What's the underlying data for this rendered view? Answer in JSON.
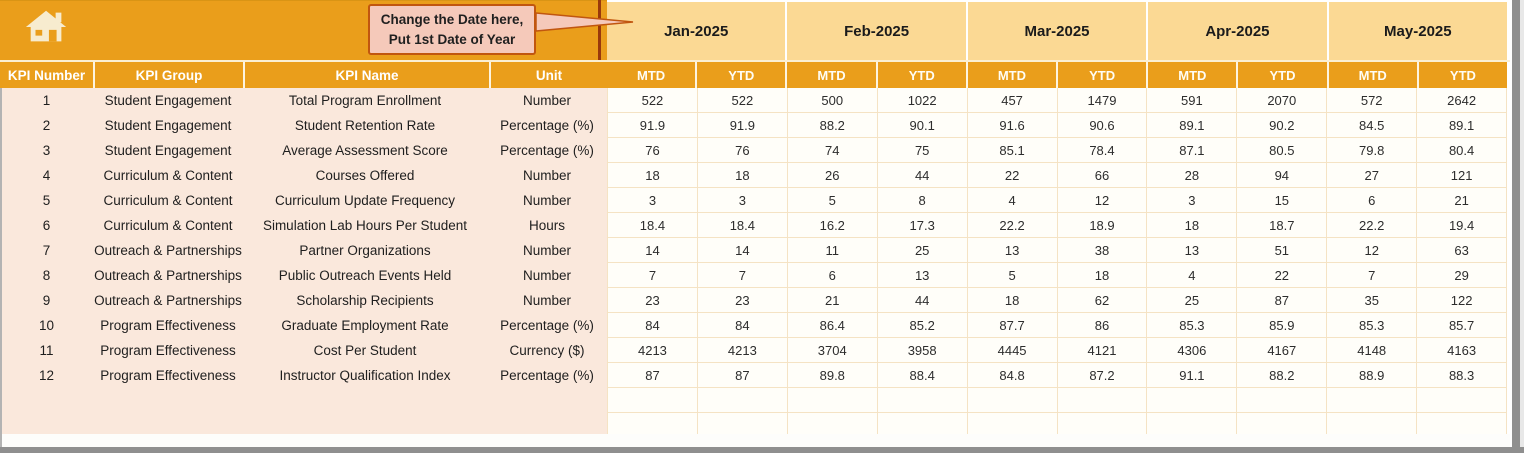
{
  "callout": {
    "line1": "Change the Date here,",
    "line2": "Put 1st Date of Year"
  },
  "icons": {
    "home": "home-icon"
  },
  "table": {
    "left_headers": [
      "KPI Number",
      "KPI Group",
      "KPI Name",
      "Unit"
    ],
    "months": [
      "Jan-2025",
      "Feb-2025",
      "Mar-2025",
      "Apr-2025",
      "May-2025"
    ],
    "sub_headers": [
      "MTD",
      "YTD"
    ],
    "rows": [
      {
        "number": "1",
        "group": "Student Engagement",
        "name": "Total Program Enrollment",
        "unit": "Number",
        "values": [
          "522",
          "522",
          "500",
          "1022",
          "457",
          "1479",
          "591",
          "2070",
          "572",
          "2642"
        ]
      },
      {
        "number": "2",
        "group": "Student Engagement",
        "name": "Student Retention Rate",
        "unit": "Percentage (%)",
        "values": [
          "91.9",
          "91.9",
          "88.2",
          "90.1",
          "91.6",
          "90.6",
          "89.1",
          "90.2",
          "84.5",
          "89.1"
        ]
      },
      {
        "number": "3",
        "group": "Student Engagement",
        "name": "Average Assessment Score",
        "unit": "Percentage (%)",
        "values": [
          "76",
          "76",
          "74",
          "75",
          "85.1",
          "78.4",
          "87.1",
          "80.5",
          "79.8",
          "80.4"
        ]
      },
      {
        "number": "4",
        "group": "Curriculum & Content",
        "name": "Courses Offered",
        "unit": "Number",
        "values": [
          "18",
          "18",
          "26",
          "44",
          "22",
          "66",
          "28",
          "94",
          "27",
          "121"
        ]
      },
      {
        "number": "5",
        "group": "Curriculum & Content",
        "name": "Curriculum Update Frequency",
        "unit": "Number",
        "values": [
          "3",
          "3",
          "5",
          "8",
          "4",
          "12",
          "3",
          "15",
          "6",
          "21"
        ]
      },
      {
        "number": "6",
        "group": "Curriculum & Content",
        "name": "Simulation Lab Hours Per Student",
        "unit": "Hours",
        "values": [
          "18.4",
          "18.4",
          "16.2",
          "17.3",
          "22.2",
          "18.9",
          "18",
          "18.7",
          "22.2",
          "19.4"
        ]
      },
      {
        "number": "7",
        "group": "Outreach & Partnerships",
        "name": "Partner Organizations",
        "unit": "Number",
        "values": [
          "14",
          "14",
          "11",
          "25",
          "13",
          "38",
          "13",
          "51",
          "12",
          "63"
        ]
      },
      {
        "number": "8",
        "group": "Outreach & Partnerships",
        "name": "Public Outreach Events Held",
        "unit": "Number",
        "values": [
          "7",
          "7",
          "6",
          "13",
          "5",
          "18",
          "4",
          "22",
          "7",
          "29"
        ]
      },
      {
        "number": "9",
        "group": "Outreach & Partnerships",
        "name": "Scholarship Recipients",
        "unit": "Number",
        "values": [
          "23",
          "23",
          "21",
          "44",
          "18",
          "62",
          "25",
          "87",
          "35",
          "122"
        ]
      },
      {
        "number": "10",
        "group": "Program Effectiveness",
        "name": "Graduate Employment Rate",
        "unit": "Percentage (%)",
        "values": [
          "84",
          "84",
          "86.4",
          "85.2",
          "87.7",
          "86",
          "85.3",
          "85.9",
          "85.3",
          "85.7"
        ]
      },
      {
        "number": "11",
        "group": "Program Effectiveness",
        "name": "Cost Per Student",
        "unit": "Currency ($)",
        "values": [
          "4213",
          "4213",
          "3704",
          "3958",
          "4445",
          "4121",
          "4306",
          "4167",
          "4148",
          "4163"
        ]
      },
      {
        "number": "12",
        "group": "Program Effectiveness",
        "name": "Instructor Qualification Index",
        "unit": "Percentage (%)",
        "values": [
          "87",
          "87",
          "89.8",
          "88.4",
          "84.8",
          "87.2",
          "91.1",
          "88.2",
          "88.9",
          "88.3"
        ]
      }
    ],
    "empty_row_count": 2
  },
  "colors": {
    "header_orange": "#EA9E1B",
    "month_band_orange": "#FBD994",
    "left_block_pink": "#FAE8DC",
    "cell_background": "#FFFEF9",
    "cell_border": "#F5E3C4",
    "callout_fill": "#F5C9BA",
    "callout_border": "#C1560F",
    "pane_divider_red": "#99390B",
    "chrome_gray": "#8F8F8F"
  }
}
